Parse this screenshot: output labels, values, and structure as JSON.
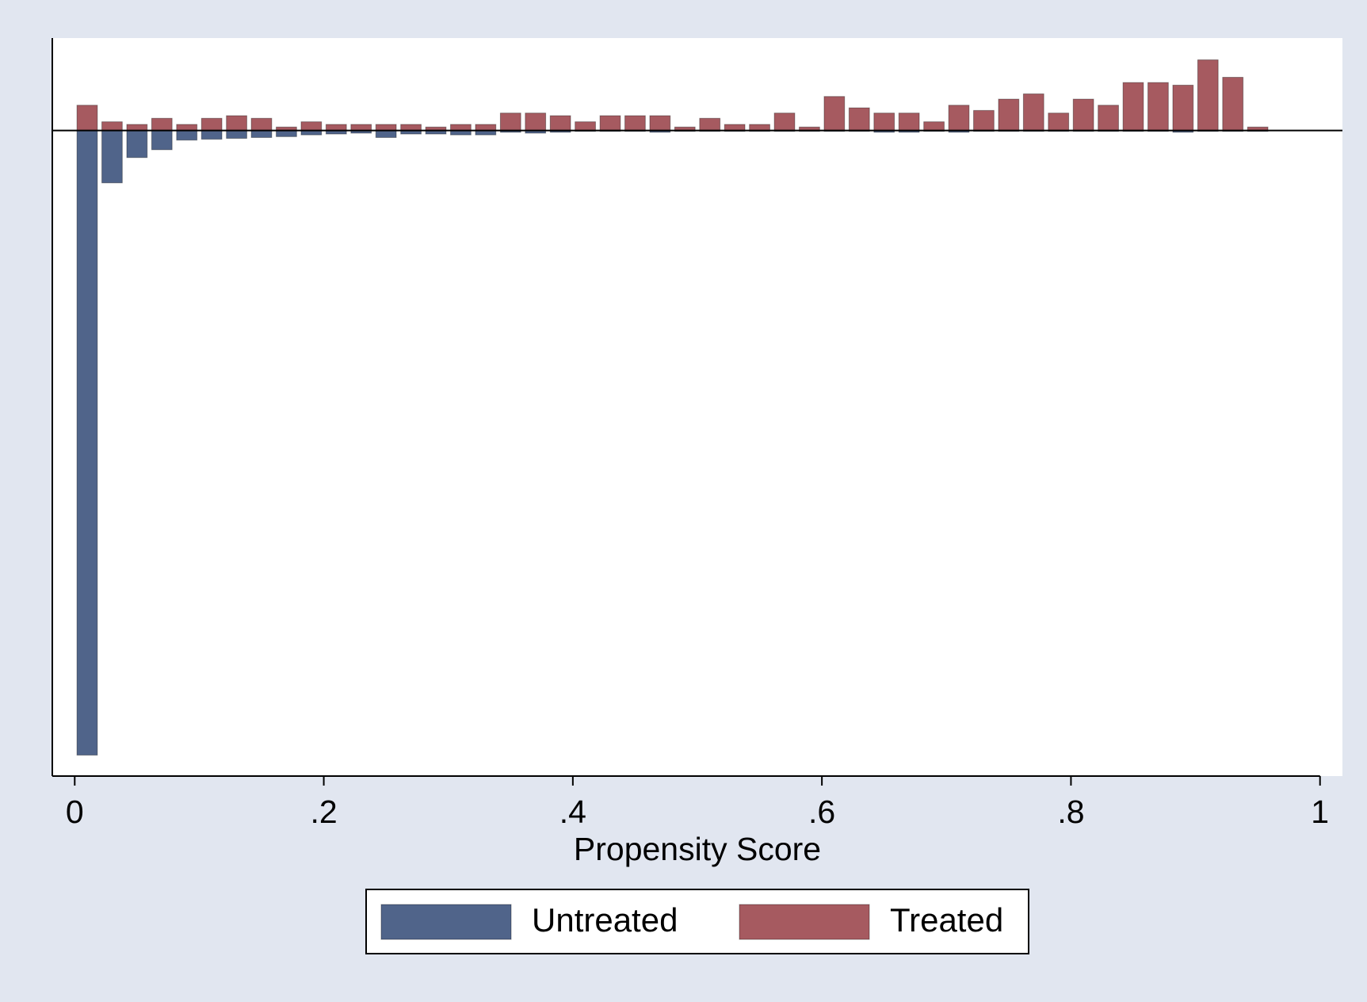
{
  "chart_data": {
    "type": "histogram",
    "x_label": "Propensity Score",
    "bins": [
      0,
      0.02,
      0.04,
      0.06,
      0.08,
      0.1,
      0.12,
      0.14,
      0.16,
      0.18,
      0.2,
      0.22,
      0.24,
      0.26,
      0.28,
      0.3,
      0.32,
      0.34,
      0.36,
      0.38,
      0.4,
      0.42,
      0.44,
      0.46,
      0.48,
      0.5,
      0.52,
      0.54,
      0.56,
      0.58,
      0.6,
      0.62,
      0.64,
      0.66,
      0.68,
      0.7,
      0.72,
      0.74,
      0.76,
      0.78,
      0.8,
      0.82,
      0.84,
      0.86,
      0.88,
      0.9,
      0.92,
      0.94,
      0.96
    ],
    "series": [
      {
        "name": "Untreated",
        "color": "#50648a",
        "values": [
          -7.16,
          -0.6,
          -0.31,
          -0.22,
          -0.11,
          -0.1,
          -0.09,
          -0.08,
          -0.07,
          -0.05,
          -0.04,
          -0.03,
          -0.08,
          -0.04,
          -0.04,
          -0.05,
          -0.05,
          -0.02,
          -0.03,
          -0.02,
          -0.01,
          -0.01,
          -0.01,
          -0.02,
          -0.01,
          -0.01,
          -0.01,
          -0.01,
          -0.01,
          -0.01,
          -0.01,
          -0.01,
          -0.02,
          -0.02,
          -0.01,
          -0.02,
          -0.01,
          -0.01,
          -0.01,
          -0.01,
          -0.01,
          -0.01,
          -0.01,
          -0.01,
          -0.02,
          -0.01,
          -0.01,
          -0.01
        ]
      },
      {
        "name": "Treated",
        "color": "#a65a60",
        "values": [
          0.29,
          0.1,
          0.07,
          0.14,
          0.07,
          0.14,
          0.17,
          0.14,
          0.04,
          0.1,
          0.07,
          0.07,
          0.07,
          0.07,
          0.04,
          0.07,
          0.07,
          0.2,
          0.2,
          0.17,
          0.1,
          0.17,
          0.17,
          0.17,
          0.04,
          0.14,
          0.07,
          0.07,
          0.2,
          0.04,
          0.39,
          0.26,
          0.2,
          0.2,
          0.1,
          0.29,
          0.23,
          0.36,
          0.42,
          0.2,
          0.36,
          0.29,
          0.55,
          0.55,
          0.52,
          0.81,
          0.61,
          0.04
        ]
      }
    ],
    "xlim": [
      -0.018,
      1.018
    ],
    "xticks": [
      0,
      {
        "value": 0.2,
        "label": ".2"
      },
      {
        "value": 0.4,
        "label": ".4"
      },
      {
        "value": 0.6,
        "label": ".6"
      },
      {
        "value": 0.8,
        "label": ".8"
      },
      1
    ],
    "ylim": [
      -7.4,
      1.06
    ],
    "yline": 0,
    "legend": "bottom"
  }
}
